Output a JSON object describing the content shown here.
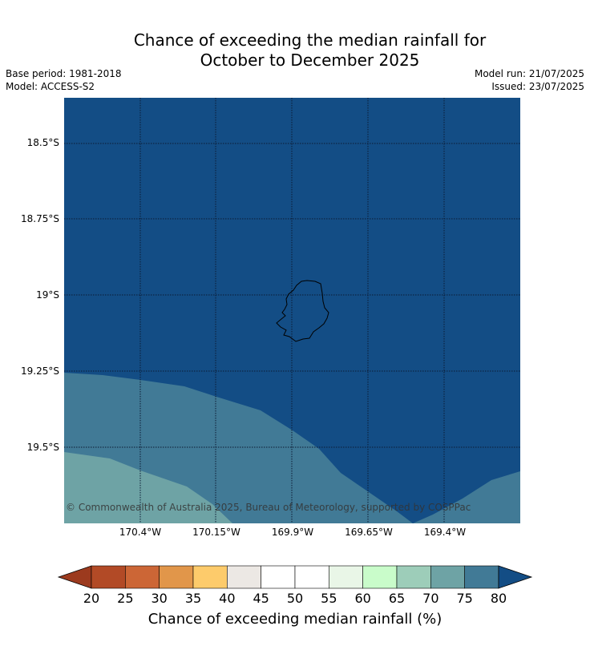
{
  "title_line1": "Chance of exceeding the median rainfall for",
  "title_line2": "October to December 2025",
  "meta": {
    "base_period": "Base period: 1981-2018",
    "model": "Model: ACCESS-S2",
    "model_run": "Model run: 21/07/2025",
    "issued": "Issued: 23/07/2025"
  },
  "map": {
    "latitude_labels": [
      "18.5°S",
      "18.75°S",
      "19°S",
      "19.25°S",
      "19.5°S"
    ],
    "longitude_labels": [
      "170.4°W",
      "170.15°W",
      "169.9°W",
      "169.65°W",
      "169.4°W"
    ],
    "copyright": "© Commonwealth of Australia 2025, Bureau of Meteorology, supported by COSPPac",
    "colors": {
      "above_80": "#134d85",
      "75_80": "#417a96",
      "70_75": "#6ea3a5"
    }
  },
  "colorbar": {
    "title": "Chance of exceeding median rainfall (%)",
    "ticks": [
      "20",
      "25",
      "30",
      "35",
      "40",
      "45",
      "50",
      "55",
      "60",
      "65",
      "70",
      "75",
      "80"
    ],
    "below_color": "#9c3a1e",
    "above_color": "#134d85",
    "bins": [
      "#b24a26",
      "#cc6636",
      "#e1964a",
      "#fdcb6b",
      "#ece8e4",
      "#ffffff",
      "#ffffff",
      "#e9f6e7",
      "#c9fcca",
      "#9dcdb9",
      "#6ea3a5",
      "#417a96"
    ]
  }
}
